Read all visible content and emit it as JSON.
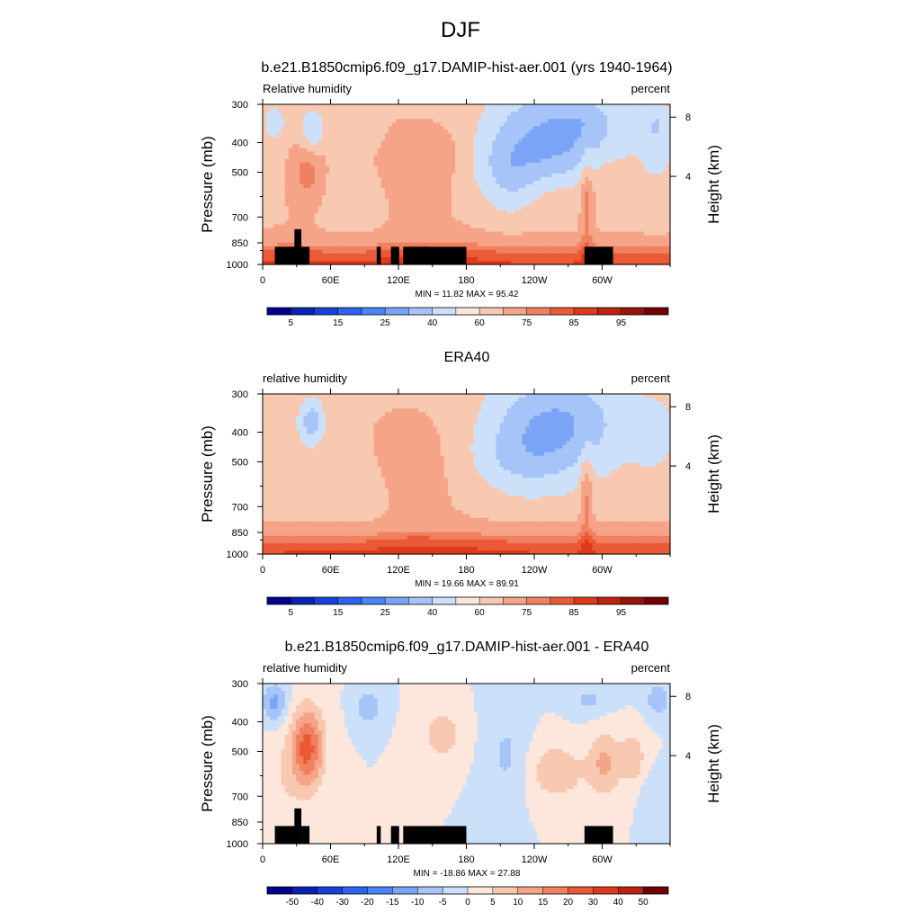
{
  "figure": {
    "title": "DJF"
  },
  "chart_data": [
    {
      "type": "heatmap",
      "title": "b.e21.B1850cmip6.f09_g17.DAMIP-hist-aer.001 (yrs 1940-1964)",
      "left_label": "Relative humidity",
      "right_label": "percent",
      "xlabel": "",
      "ylabel": "Pressure (mb)",
      "ylabel_right": "Height (km)",
      "x_ticks": [
        "0",
        "60E",
        "120E",
        "180",
        "120W",
        "60W"
      ],
      "y_ticks": [
        "300",
        "400",
        "500",
        "700",
        "850",
        "1000"
      ],
      "y_right_ticks": [
        "8",
        "4"
      ],
      "stats": "MIN = 11.82  MAX = 95.42",
      "stats_values": {
        "min": 11.82,
        "max": 95.42
      },
      "colorbar_labels": [
        "5",
        "15",
        "25",
        "40",
        "60",
        "75",
        "85",
        "95"
      ],
      "kind": "abs",
      "terrain": true
    },
    {
      "type": "heatmap",
      "title": "ERA40",
      "left_label": "relative humidity",
      "right_label": "percent",
      "xlabel": "",
      "ylabel": "Pressure (mb)",
      "ylabel_right": "Height (km)",
      "x_ticks": [
        "0",
        "60E",
        "120E",
        "180",
        "120W",
        "60W"
      ],
      "y_ticks": [
        "300",
        "400",
        "500",
        "700",
        "850",
        "1000"
      ],
      "y_right_ticks": [
        "8",
        "4"
      ],
      "stats": "MIN = 19.66  MAX = 89.91",
      "stats_values": {
        "min": 19.66,
        "max": 89.91
      },
      "colorbar_labels": [
        "5",
        "15",
        "25",
        "40",
        "60",
        "75",
        "85",
        "95"
      ],
      "kind": "obs",
      "terrain": false
    },
    {
      "type": "heatmap",
      "title": "b.e21.B1850cmip6.f09_g17.DAMIP-hist-aer.001 - ERA40",
      "left_label": "relative humidity",
      "right_label": "percent",
      "xlabel": "",
      "ylabel": "Pressure (mb)",
      "ylabel_right": "Height (km)",
      "x_ticks": [
        "0",
        "60E",
        "120E",
        "180",
        "120W",
        "60W"
      ],
      "y_ticks": [
        "300",
        "400",
        "500",
        "700",
        "850",
        "1000"
      ],
      "y_right_ticks": [
        "8",
        "4"
      ],
      "stats": "MIN = -18.86  MAX = 27.88",
      "stats_values": {
        "min": -18.86,
        "max": 27.88
      },
      "colorbar_labels": [
        "-50",
        "-40",
        "-30",
        "-20",
        "-15",
        "-10",
        "-5",
        "0",
        "5",
        "10",
        "15",
        "20",
        "30",
        "40",
        "50"
      ],
      "kind": "diff",
      "terrain": true
    }
  ],
  "colors": {
    "abs_scale": [
      "#00008c",
      "#0a22b4",
      "#1941d6",
      "#2c63f0",
      "#4a82f7",
      "#7aa5f7",
      "#a6c4f7",
      "#cde0f9",
      "#fde7dc",
      "#f9c8b1",
      "#f5a488",
      "#f0805f",
      "#eb5a36",
      "#dc3a1a",
      "#bc2210",
      "#941408",
      "#700000"
    ],
    "diff_scale": [
      "#00008c",
      "#0a22b4",
      "#1941d6",
      "#2c63f0",
      "#4a82f7",
      "#7aa5f7",
      "#a6c4f7",
      "#cde0f9",
      "#fde7dc",
      "#f9c8b1",
      "#f5a488",
      "#f0805f",
      "#eb5a36",
      "#dc3a1a",
      "#bc2210",
      "#700000"
    ],
    "terrain": "#000000"
  }
}
